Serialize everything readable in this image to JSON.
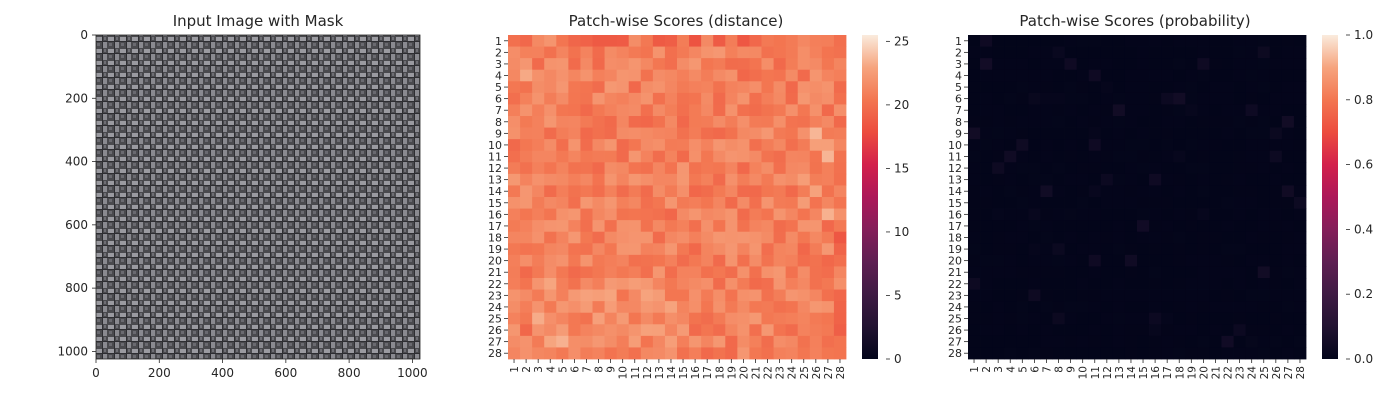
{
  "chart_data": [
    {
      "type": "image",
      "title": "Input Image with Mask",
      "xticks": [
        0,
        200,
        400,
        600,
        800,
        1000
      ],
      "yticks": [
        0,
        200,
        400,
        600,
        800,
        1000
      ],
      "xlim": [
        0,
        1024
      ],
      "ylim": [
        1024,
        0
      ],
      "content": "woven burlap fabric texture, grayscale"
    },
    {
      "type": "heatmap",
      "title": "Patch-wise Scores (distance)",
      "rows": [
        1,
        2,
        3,
        4,
        5,
        6,
        7,
        8,
        9,
        10,
        11,
        12,
        13,
        14,
        15,
        16,
        17,
        18,
        19,
        20,
        21,
        22,
        23,
        24,
        25,
        26,
        27,
        28
      ],
      "cols": [
        1,
        2,
        3,
        4,
        5,
        6,
        7,
        8,
        9,
        10,
        11,
        12,
        13,
        14,
        15,
        16,
        17,
        18,
        19,
        20,
        21,
        22,
        23,
        24,
        25,
        26,
        27,
        28
      ],
      "colorbar_ticks": [
        0,
        5,
        10,
        15,
        20,
        25
      ],
      "vmin": 0,
      "vmax": 25.5,
      "colormap": "rocket",
      "values_range": [
        17,
        25.5
      ],
      "colorbar": true
    },
    {
      "type": "heatmap",
      "title": "Patch-wise Scores (probability)",
      "rows": [
        1,
        2,
        3,
        4,
        5,
        6,
        7,
        8,
        9,
        10,
        11,
        12,
        13,
        14,
        15,
        16,
        17,
        18,
        19,
        20,
        21,
        22,
        23,
        24,
        25,
        26,
        27,
        28
      ],
      "cols": [
        1,
        2,
        3,
        4,
        5,
        6,
        7,
        8,
        9,
        10,
        11,
        12,
        13,
        14,
        15,
        16,
        17,
        18,
        19,
        20,
        21,
        22,
        23,
        24,
        25,
        26,
        27,
        28
      ],
      "colorbar_ticks": [
        "0.0",
        "0.2",
        "0.4",
        "0.6",
        "0.8",
        "1.0"
      ],
      "vmin": 0,
      "vmax": 1,
      "colormap": "rocket",
      "values_range": [
        0,
        0.05
      ],
      "colorbar": true
    }
  ]
}
